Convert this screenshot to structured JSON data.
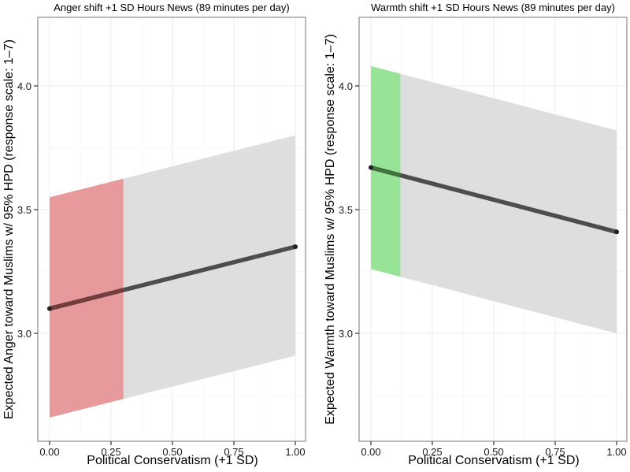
{
  "chart_data": [
    {
      "type": "line",
      "title": "Anger shift +1 SD Hours News (89 minutes per day)",
      "xlabel": "Political Conservatism (+1 SD)",
      "ylabel": "Expected Anger toward Muslims w/ 95% HPD (response scale: 1–7)",
      "xlim": [
        0,
        1
      ],
      "ylim": [
        2.564,
        4.277
      ],
      "x_ticks": [
        0,
        0.25,
        0.5,
        0.75,
        1.0
      ],
      "x_tick_labels": [
        "0.00",
        "0.25",
        "0.50",
        "0.75",
        "1.00"
      ],
      "y_ticks": [
        3.0,
        3.5,
        4.0
      ],
      "y_tick_labels": [
        "3.0",
        "3.5",
        "4.0"
      ],
      "grid": true,
      "series": [
        {
          "name": "expected",
          "x": [
            0,
            1
          ],
          "y": [
            3.1,
            3.35
          ],
          "lower": [
            2.66,
            2.91
          ],
          "upper": [
            3.55,
            3.8
          ]
        }
      ],
      "highlight_region": {
        "x": [
          0,
          0.3
        ],
        "color": "#e8999b"
      },
      "band_color": "#dedede",
      "line_color": "#4d4d4d"
    },
    {
      "type": "line",
      "title": "Warmth shift +1 SD Hours News (89 minutes per day)",
      "xlabel": "Political Conservatism (+1 SD)",
      "ylabel": "Expected Warmth toward Muslims w/ 95% HPD (response scale: 1–7)",
      "xlim": [
        0,
        1
      ],
      "ylim": [
        2.564,
        4.277
      ],
      "x_ticks": [
        0,
        0.25,
        0.5,
        0.75,
        1.0
      ],
      "x_tick_labels": [
        "0.00",
        "0.25",
        "0.50",
        "0.75",
        "1.00"
      ],
      "y_ticks": [
        3.0,
        3.5,
        4.0
      ],
      "y_tick_labels": [
        "3.0",
        "3.5",
        "4.0"
      ],
      "grid": true,
      "series": [
        {
          "name": "expected",
          "x": [
            0,
            1
          ],
          "y": [
            3.67,
            3.41
          ],
          "lower": [
            3.26,
            3.0
          ],
          "upper": [
            4.08,
            3.82
          ]
        }
      ],
      "highlight_region": {
        "x": [
          0,
          0.12
        ],
        "color": "#98e496"
      },
      "band_color": "#dedede",
      "line_color": "#4d4d4d"
    }
  ]
}
